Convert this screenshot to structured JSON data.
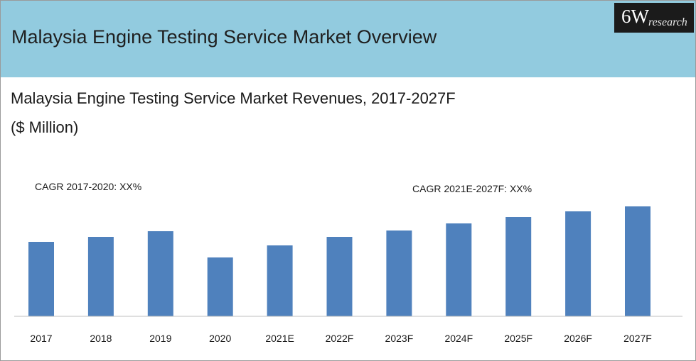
{
  "header": {
    "title": "Malaysia Engine Testing Service Market Overview",
    "logo_main": "6W",
    "logo_sub": "research"
  },
  "chart_title_line1": "Malaysia Engine Testing Service Market Revenues, 2017-2027F",
  "chart_title_line2": "($ Million)",
  "colors": {
    "banner": "#92cbdf",
    "bar": "#4f81bd",
    "axis": "#bfbfbf"
  },
  "chart_data": {
    "type": "bar",
    "title": "Malaysia Engine Testing Service Market Revenues, 2017-2027F",
    "ylabel": "($ Million)",
    "xlabel": "",
    "categories": [
      "2017",
      "2018",
      "2019",
      "2020",
      "2021E",
      "2022F",
      "2023F",
      "2024F",
      "2025F",
      "2026F",
      "2027F"
    ],
    "values": [
      105,
      112,
      120,
      83,
      100,
      112,
      121,
      131,
      140,
      148,
      155
    ],
    "ylim": [
      0,
      160
    ],
    "grid": false,
    "annotations": [
      {
        "text": "CAGR 2017-2020: XX%"
      },
      {
        "text": "CAGR 2021E-2027F: XX%"
      }
    ]
  }
}
